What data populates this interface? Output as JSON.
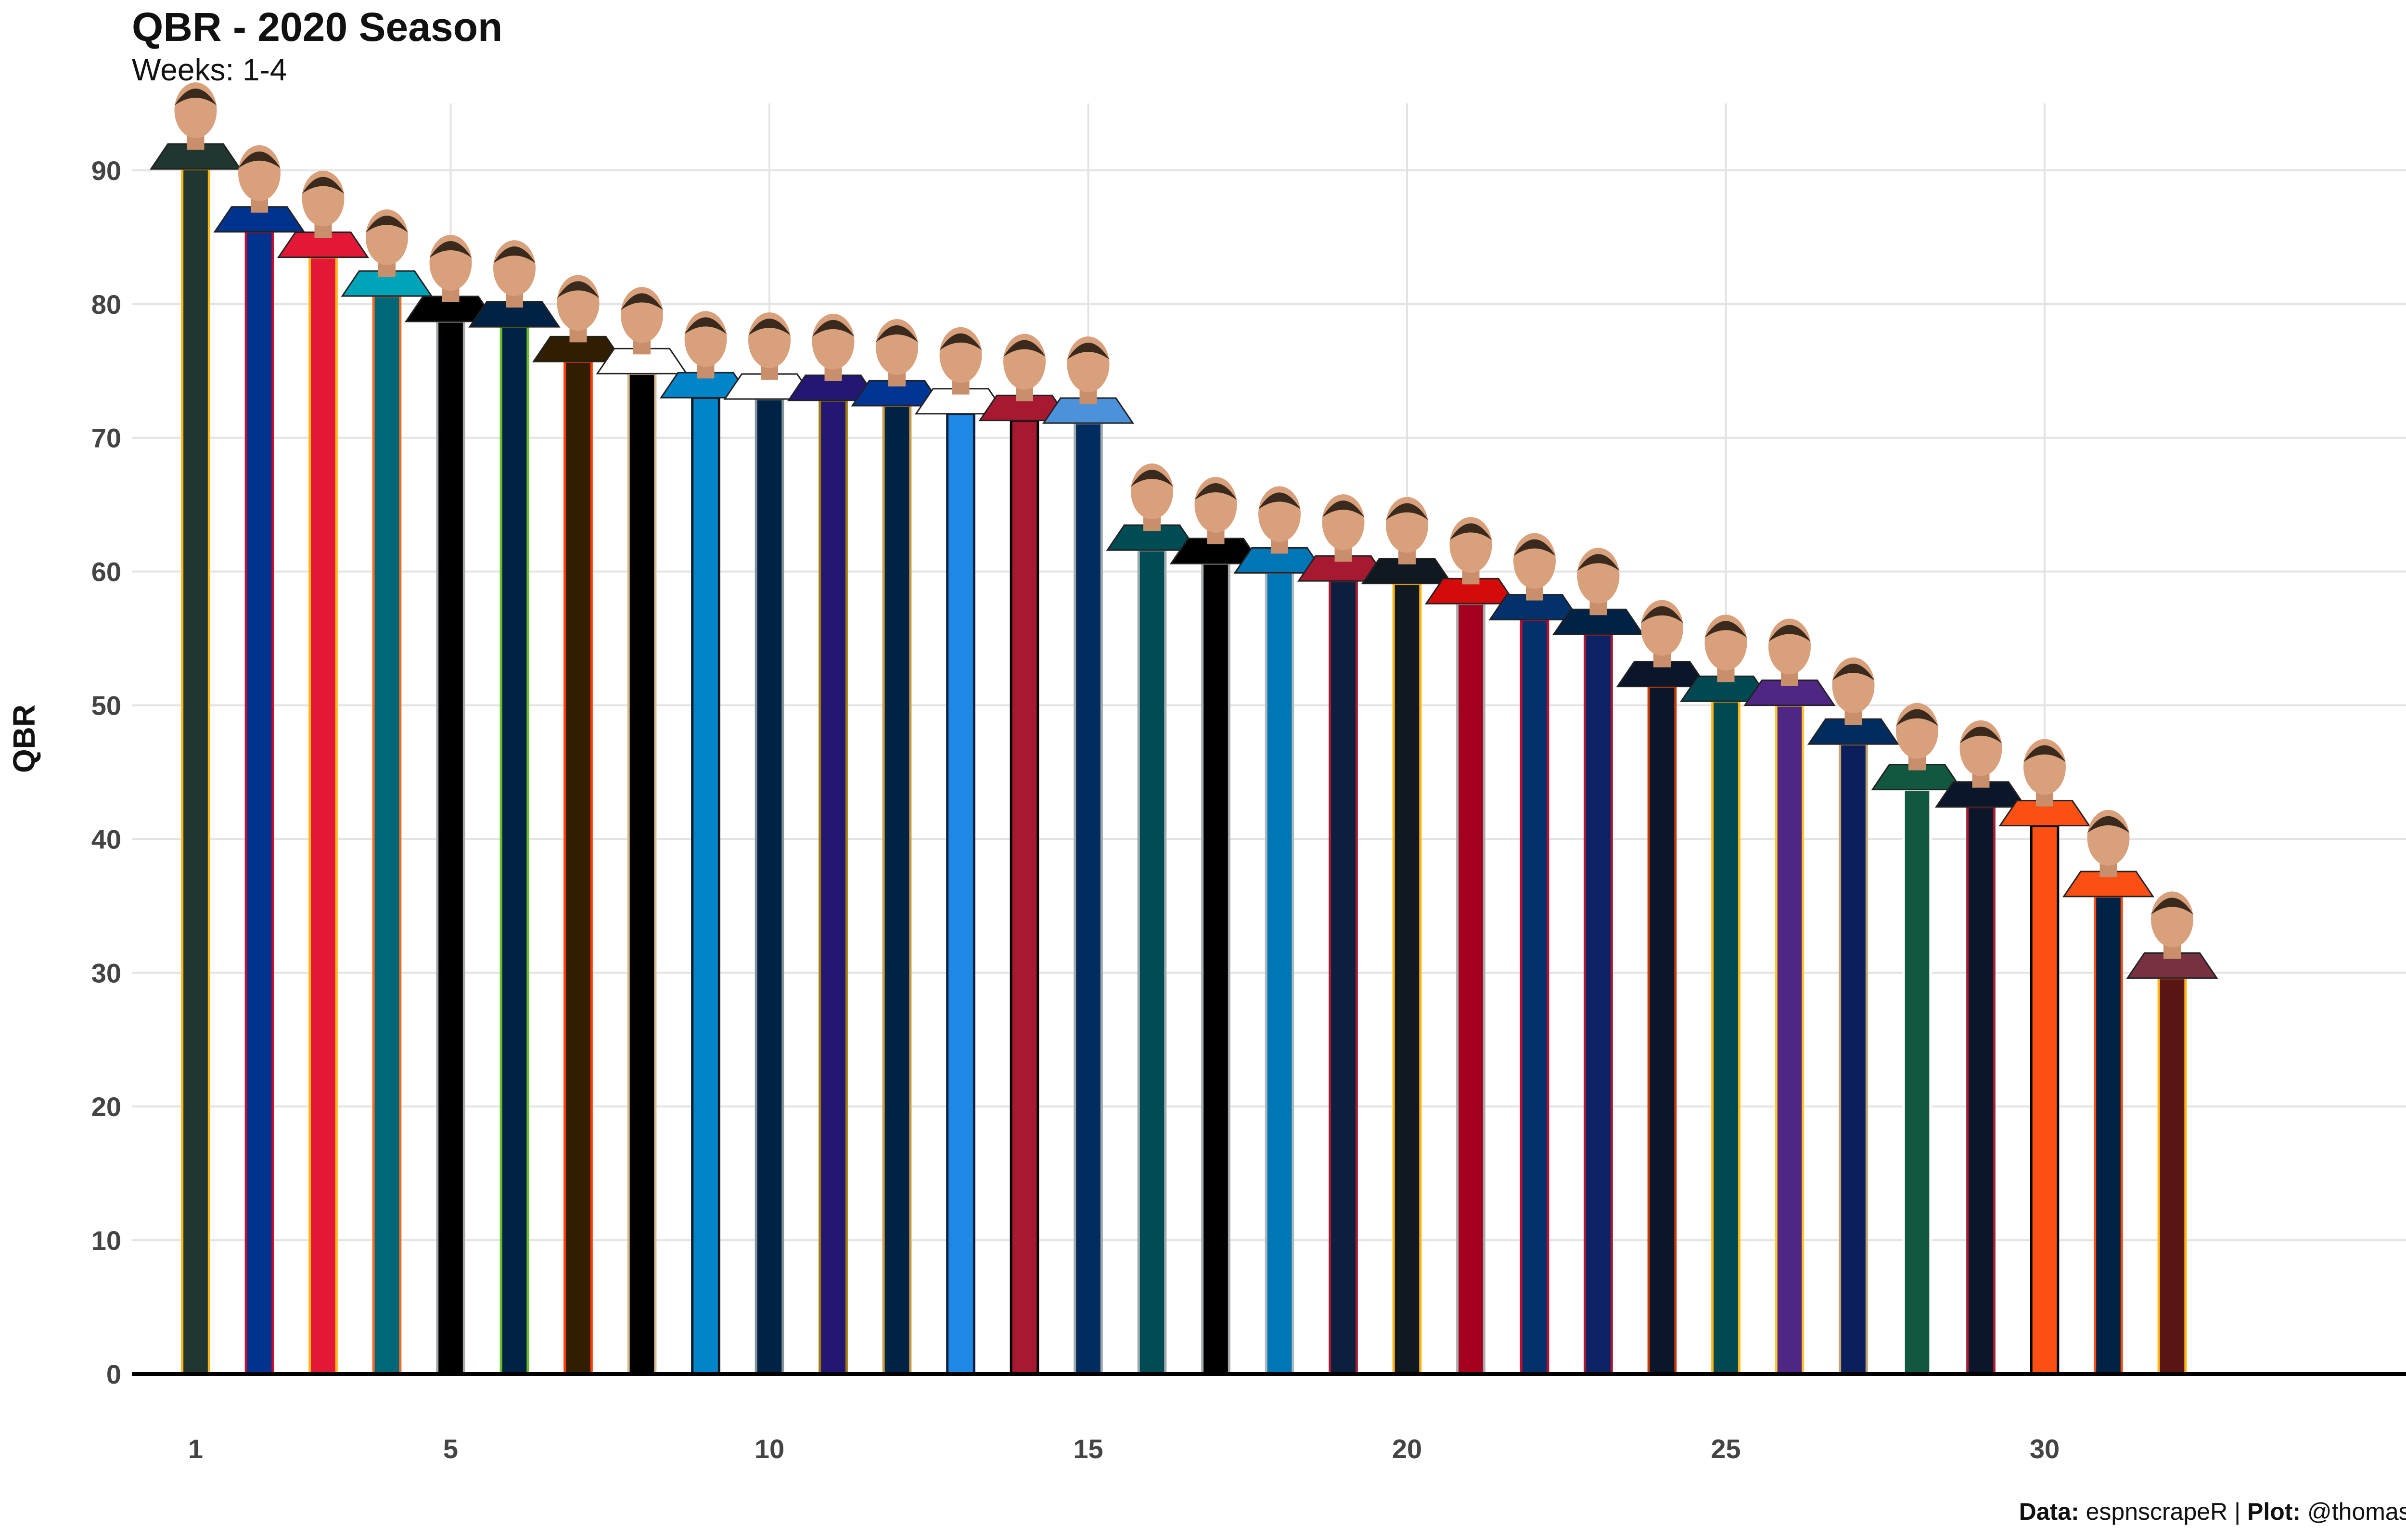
{
  "chart_data": {
    "type": "bar",
    "title": "QBR - 2020 Season",
    "subtitle": "Weeks: 1-4",
    "ylabel": "QBR",
    "xlabel": "",
    "ylim": [
      0,
      95
    ],
    "xlim": [
      0,
      36.8
    ],
    "x_ticks": [
      1,
      5,
      10,
      15,
      20,
      25,
      30
    ],
    "y_ticks": [
      0,
      10,
      20,
      30,
      40,
      50,
      60,
      70,
      80,
      90
    ],
    "grid": true,
    "x": [
      1,
      2,
      3,
      4,
      5,
      6,
      7,
      8,
      9,
      10,
      11,
      12,
      13,
      14,
      15,
      16,
      17,
      18,
      19,
      20,
      21,
      22,
      23,
      24,
      25,
      26,
      27,
      28,
      29,
      30,
      31,
      32
    ],
    "values": [
      90.1,
      85.4,
      83.5,
      80.6,
      78.7,
      78.3,
      75.7,
      74.8,
      73.0,
      72.9,
      72.8,
      72.4,
      71.8,
      71.3,
      71.1,
      61.6,
      60.6,
      59.9,
      59.3,
      59.1,
      57.6,
      56.4,
      55.3,
      51.4,
      50.3,
      50.0,
      47.1,
      43.7,
      42.4,
      41.0,
      35.7,
      29.6
    ],
    "bar_colors": [
      "#203731",
      "#00338D",
      "#E31837",
      "#006778",
      "#000000",
      "#002244",
      "#311D00",
      "#000000",
      "#0085CA",
      "#002244",
      "#241773",
      "#002244",
      "#1E88E5",
      "#A71930",
      "#002C5F",
      "#004C54",
      "#000000",
      "#0076B6",
      "#0B1F3F",
      "#101820",
      "#A5001E",
      "#03316C",
      "#0B2265",
      "#0B162A",
      "#004953",
      "#4F2683",
      "#0B1F5C",
      "#125740",
      "#0B162A",
      "#FB4F14",
      "#002244",
      "#5A1414"
    ],
    "bar_outline_colors": [
      "#FFB612",
      "#C60C30",
      "#FFB81C",
      "#F26A24",
      "#A5ACAF",
      "#69BE28",
      "#FF3C00",
      "#D3BC8D",
      "#101820",
      "#869397",
      "#9E7C0C",
      "#C99B42",
      "#0A1F3F",
      "#000000",
      "#A2AAAD",
      "#A5ACAF",
      "#A5ACAF",
      "#B0B7BC",
      "#A71930",
      "#FFB612",
      "#A5ACAF",
      "#C60C30",
      "#A71930",
      "#C83803",
      "#FFB612",
      "#FFC62F",
      "#C7A36E",
      "#FFFFFF",
      "#A71930",
      "#000000",
      "#FB4F14",
      "#FFB612"
    ],
    "jersey_colors": [
      "#203731",
      "#00338D",
      "#E31837",
      "#00A4B8",
      "#000000",
      "#002244",
      "#311D00",
      "#FFFFFF",
      "#0085CA",
      "#FFFFFF",
      "#241773",
      "#003594",
      "#FFFFFF",
      "#A71930",
      "#4B92DB",
      "#004C54",
      "#000000",
      "#0076B6",
      "#A71930",
      "#101820",
      "#D50A0A",
      "#03316C",
      "#002244",
      "#0B162A",
      "#004953",
      "#4F2683",
      "#002C5F",
      "#125740",
      "#0B162A",
      "#FB4F14",
      "#FB4F14",
      "#773141"
    ]
  },
  "caption": {
    "data_label": "Data:",
    "data_value": "espnscrapeR",
    "separator": "|",
    "plot_label": "Plot:",
    "plot_value": "@thomas_mock"
  }
}
